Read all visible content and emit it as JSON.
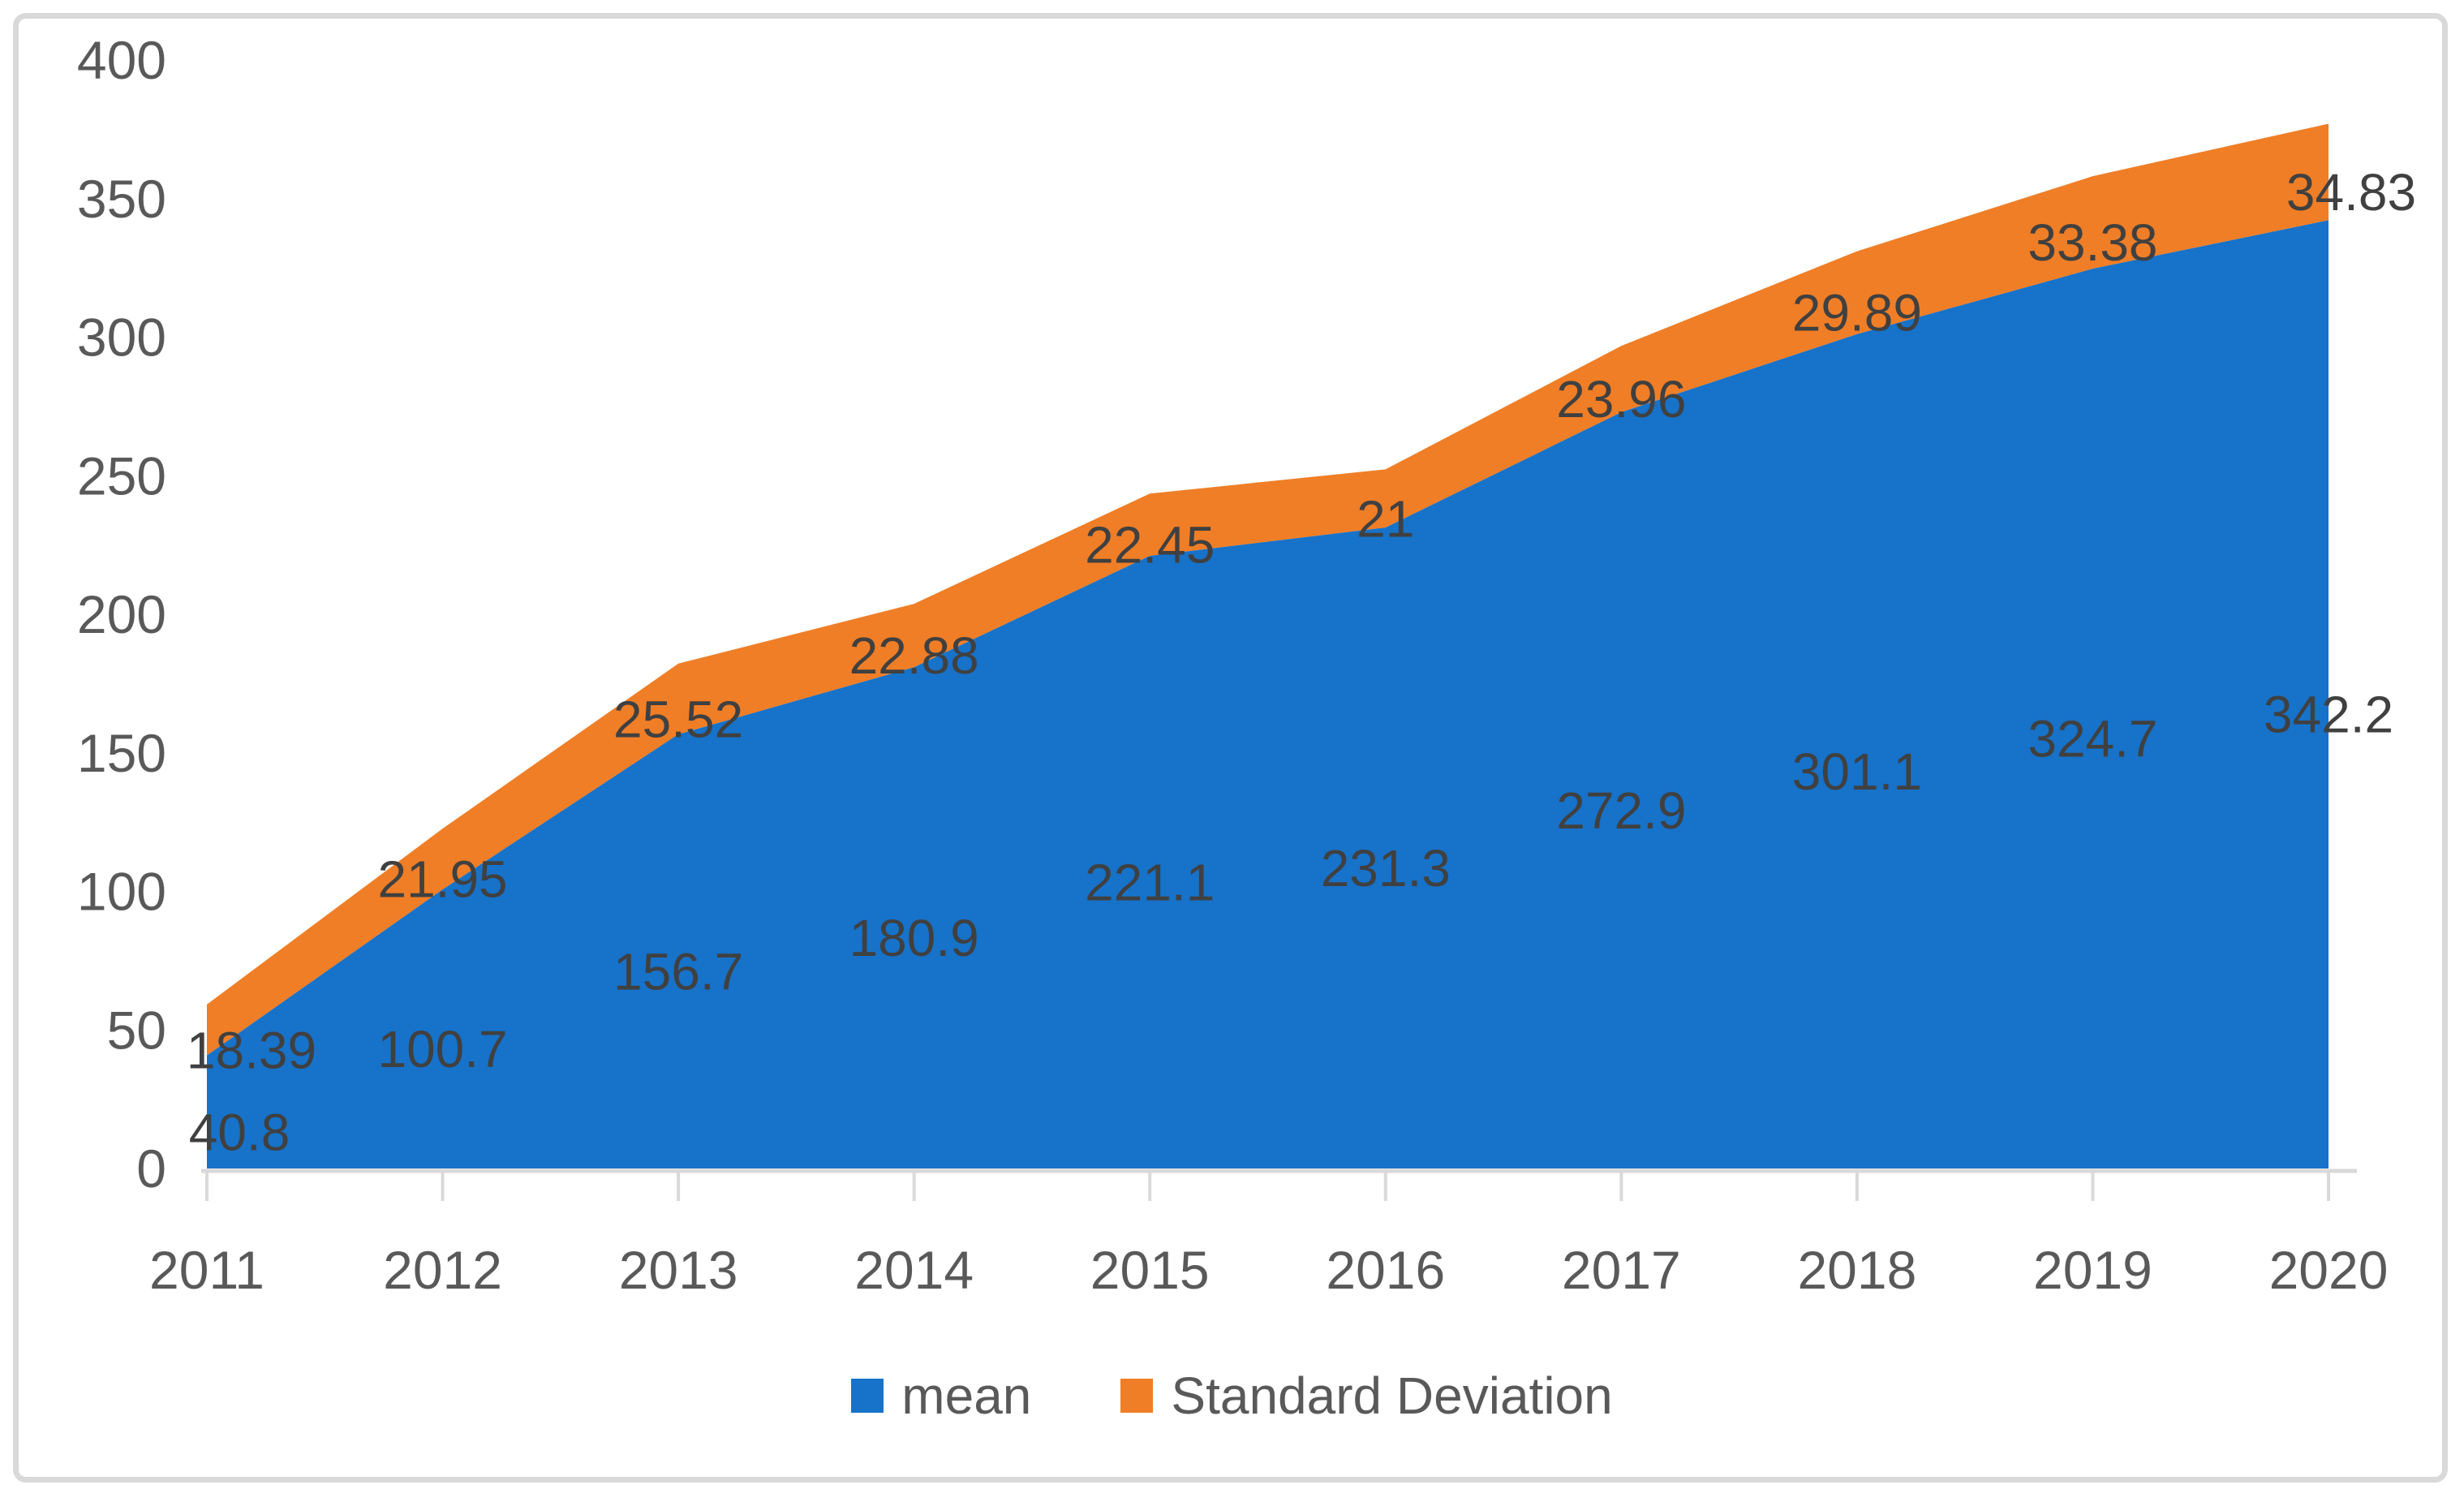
{
  "figure": {
    "background_color": "#ffffff",
    "frame_color": "#d9d9d9"
  },
  "chart_data": {
    "type": "area",
    "stacked": true,
    "title": "",
    "xlabel": "",
    "ylabel": "",
    "categories": [
      "2011",
      "2012",
      "2013",
      "2014",
      "2015",
      "2016",
      "2017",
      "2018",
      "2019",
      "2020"
    ],
    "series": [
      {
        "name": "mean",
        "color": "#1772c9",
        "values": [
          40.8,
          100.7,
          156.7,
          180.9,
          221.1,
          231.3,
          272.9,
          301.1,
          324.7,
          342.2
        ],
        "labels": [
          "40.8",
          "100.7",
          "156.7",
          "180.9",
          "221.1",
          "231.3",
          "272.9",
          "301.1",
          "324.7",
          "342.2"
        ]
      },
      {
        "name": "Standard Deviation",
        "color": "#f07e26",
        "values": [
          18.39,
          21.95,
          25.52,
          22.88,
          22.45,
          21,
          23.96,
          29.89,
          33.38,
          34.83
        ],
        "labels": [
          "18.39",
          "21.95",
          "25.52",
          "22.88",
          "22.45",
          "21",
          "23.96",
          "29.89",
          "33.38",
          "34.83"
        ]
      }
    ],
    "ylim": [
      0,
      400
    ],
    "ytick_step": 50,
    "yticks": [
      "0",
      "50",
      "100",
      "150",
      "200",
      "250",
      "300",
      "350",
      "400"
    ],
    "gridlines": false,
    "legend_position": "bottom",
    "axis_line_color": "#d9d9d9",
    "tick_label_color": "#595959",
    "data_label_color": "#404040"
  }
}
